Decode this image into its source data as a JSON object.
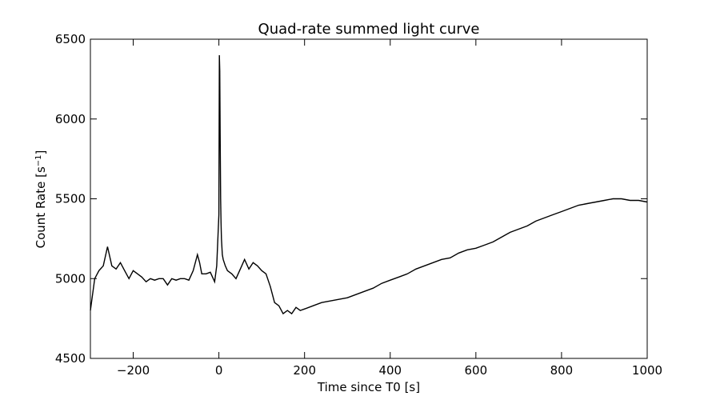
{
  "chart_data": {
    "type": "line",
    "title": "Quad-rate summed light curve",
    "xlabel": "Time since T0 [s]",
    "ylabel_main": "Count Rate [s",
    "ylabel_exp": "−1",
    "ylabel_end": "]",
    "xlim": [
      -300,
      1000
    ],
    "ylim": [
      4500,
      6500
    ],
    "xticks": [
      -200,
      0,
      200,
      400,
      600,
      800,
      1000
    ],
    "xtick_labels": [
      "−200",
      "0",
      "200",
      "400",
      "600",
      "800",
      "1000"
    ],
    "yticks": [
      4500,
      5000,
      5500,
      6000,
      6500
    ],
    "ytick_labels": [
      "4500",
      "5000",
      "5500",
      "6000",
      "6500"
    ],
    "grid": false,
    "line_color": "#000000",
    "series": [
      {
        "x": [
          -300,
          -290,
          -280,
          -270,
          -260,
          -250,
          -240,
          -230,
          -220,
          -210,
          -200,
          -190,
          -180,
          -170,
          -160,
          -150,
          -140,
          -130,
          -120,
          -110,
          -100,
          -90,
          -80,
          -70,
          -60,
          -50,
          -45,
          -40,
          -30,
          -20,
          -10,
          -5,
          0,
          1,
          2,
          3,
          4,
          5,
          6,
          8,
          10,
          15,
          20,
          30,
          40,
          50,
          60,
          70,
          80,
          90,
          100,
          110,
          120,
          130,
          140,
          150,
          160,
          170,
          180,
          190,
          200,
          220,
          240,
          260,
          280,
          300,
          320,
          340,
          360,
          380,
          400,
          420,
          440,
          460,
          480,
          500,
          520,
          540,
          560,
          580,
          600,
          620,
          640,
          660,
          680,
          700,
          720,
          740,
          760,
          780,
          800,
          820,
          840,
          860,
          880,
          900,
          920,
          940,
          960,
          980,
          1000
        ],
        "y": [
          4800,
          5000,
          5050,
          5080,
          5200,
          5080,
          5060,
          5100,
          5050,
          5000,
          5050,
          5030,
          5010,
          4980,
          5000,
          4990,
          5000,
          5000,
          4960,
          5000,
          4990,
          5000,
          5000,
          4990,
          5050,
          5150,
          5100,
          5030,
          5030,
          5040,
          4980,
          5080,
          5400,
          6400,
          6300,
          5900,
          5500,
          5350,
          5250,
          5150,
          5120,
          5080,
          5050,
          5030,
          5000,
          5060,
          5120,
          5060,
          5100,
          5080,
          5050,
          5030,
          4950,
          4850,
          4830,
          4780,
          4800,
          4780,
          4820,
          4800,
          4810,
          4830,
          4850,
          4860,
          4870,
          4880,
          4900,
          4920,
          4940,
          4970,
          4990,
          5010,
          5030,
          5060,
          5080,
          5100,
          5120,
          5130,
          5160,
          5180,
          5190,
          5210,
          5230,
          5260,
          5290,
          5310,
          5330,
          5360,
          5380,
          5400,
          5420,
          5440,
          5460,
          5470,
          5480,
          5490,
          5500,
          5500,
          5490,
          5490,
          5480
        ]
      }
    ]
  }
}
